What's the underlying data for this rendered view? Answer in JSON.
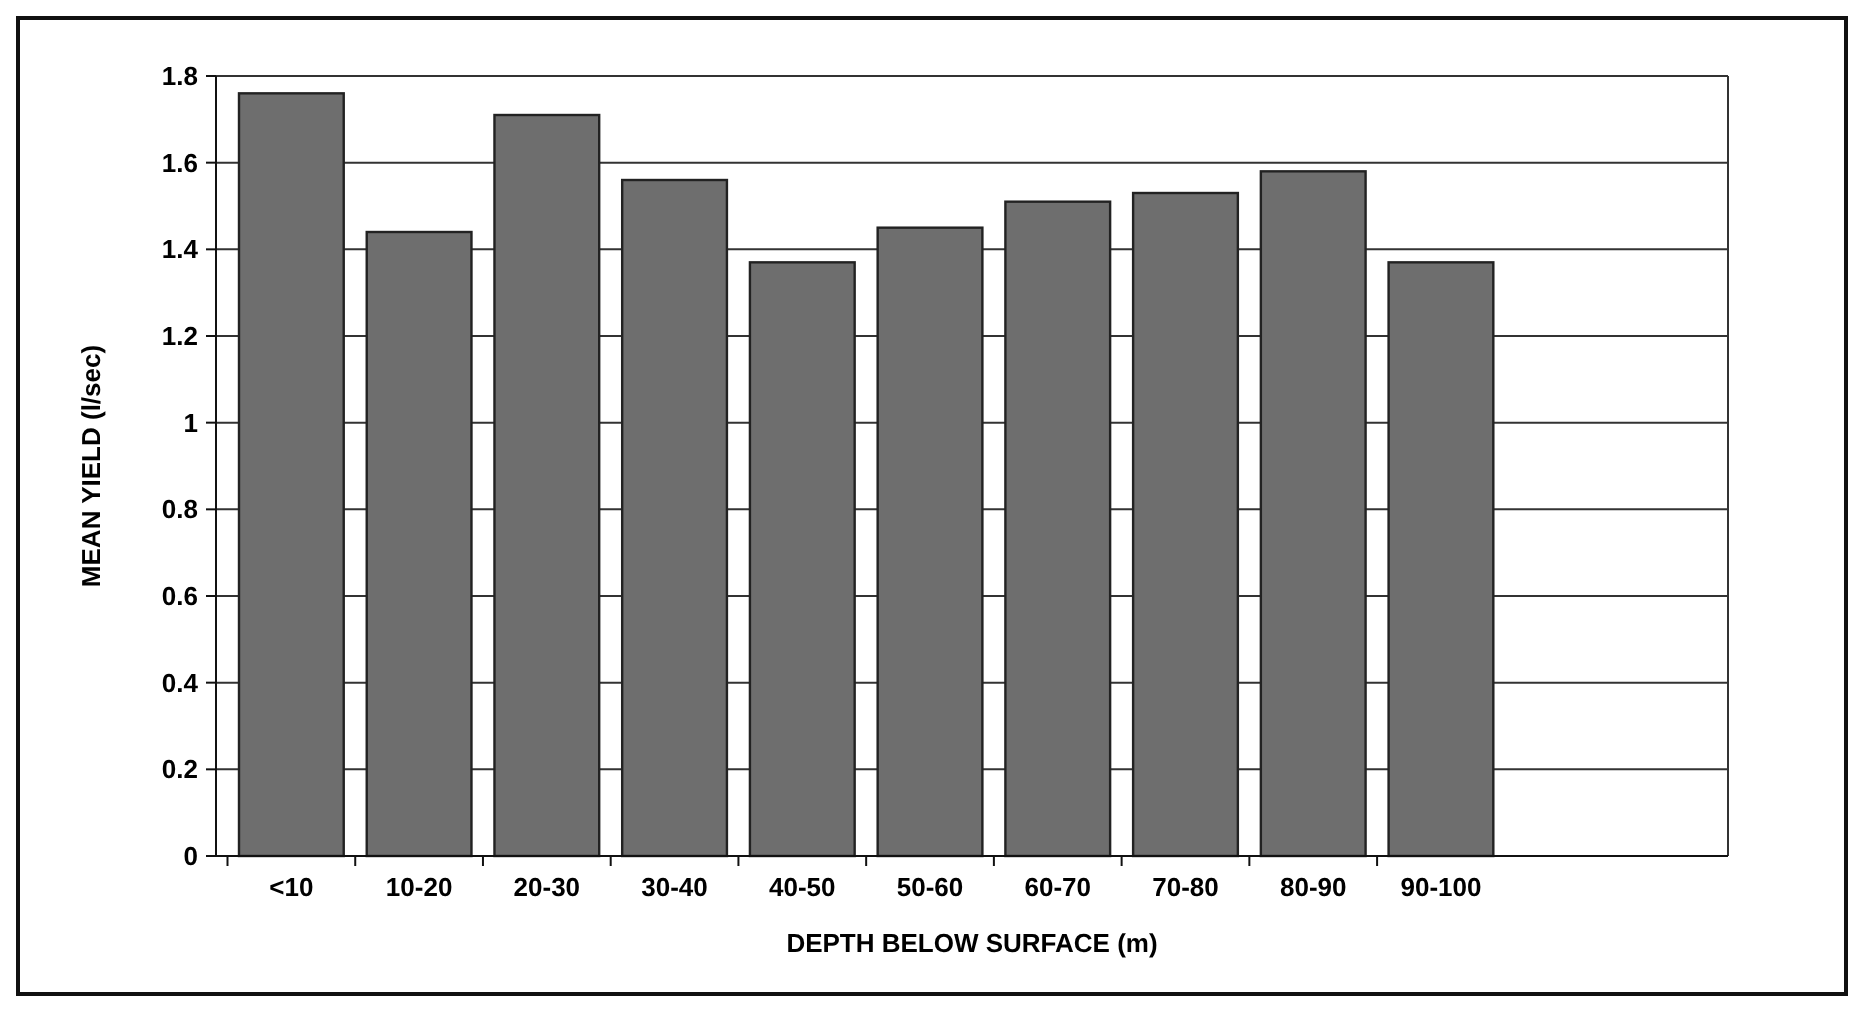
{
  "chart_data": {
    "type": "bar",
    "xlabel": "DEPTH BELOW SURFACE (m)",
    "ylabel": "MEAN YIELD  (l/sec)",
    "categories": [
      "<10",
      "10-20",
      "20-30",
      "30-40",
      "40-50",
      "50-60",
      "60-70",
      "70-80",
      "80-90",
      "90-100"
    ],
    "values": [
      1.76,
      1.44,
      1.71,
      1.56,
      1.37,
      1.45,
      1.51,
      1.53,
      1.58,
      1.37
    ],
    "color": "#6e6e6e",
    "ylim": [
      0,
      1.8
    ],
    "yticks": [
      0,
      0.2,
      0.4,
      0.6,
      0.8,
      1,
      1.2,
      1.4,
      1.6,
      1.8
    ],
    "grid": "y"
  }
}
